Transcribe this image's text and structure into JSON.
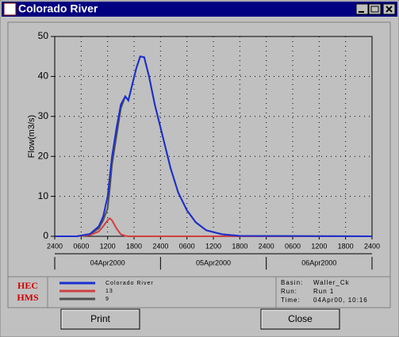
{
  "window": {
    "title": "Colorado River"
  },
  "chart_data": {
    "type": "line",
    "y_label": "Flow(m3/s)",
    "x": [
      0,
      5,
      8,
      10,
      11,
      12,
      12.5,
      13,
      14,
      15,
      16,
      16.7,
      17.6,
      18.5,
      19.4,
      20.3,
      21.4,
      22.7,
      24.5,
      26.3,
      28,
      30,
      32,
      34.4,
      38,
      42,
      72
    ],
    "series": [
      {
        "name": "Colorado River",
        "color": "#1a2fd0",
        "values": [
          0,
          0,
          0.6,
          2.5,
          5,
          10,
          15,
          20,
          27,
          33,
          35,
          34,
          38,
          42,
          45,
          44.8,
          40,
          33,
          25,
          17,
          11,
          6.5,
          3.5,
          1.5,
          0.5,
          0.1,
          0
        ]
      },
      {
        "name": "13",
        "color": "#d04040",
        "values": [
          0,
          0,
          0.3,
          1.2,
          2.5,
          4,
          4.5,
          4,
          2,
          0.5,
          0.1,
          0,
          0,
          0,
          0,
          0,
          0,
          0,
          0,
          0,
          0,
          0,
          0,
          0,
          0,
          0,
          0
        ]
      },
      {
        "name": "9",
        "color": "#505050",
        "values": [
          0,
          0,
          0.5,
          2,
          4,
          7,
          12,
          18,
          25,
          32,
          35,
          34,
          38,
          42,
          45,
          44.8,
          40,
          33,
          25,
          17,
          11,
          6.5,
          3.5,
          1.5,
          0.5,
          0.1,
          0
        ]
      }
    ],
    "xlim": [
      0,
      72
    ],
    "xticks": [
      {
        "value": 0,
        "label": "2400"
      },
      {
        "value": 6,
        "label": "0600"
      },
      {
        "value": 12,
        "label": "1200"
      },
      {
        "value": 18,
        "label": "1800"
      },
      {
        "value": 24,
        "label": "2400"
      },
      {
        "value": 30,
        "label": "0600"
      },
      {
        "value": 36,
        "label": "1200"
      },
      {
        "value": 42,
        "label": "1800"
      },
      {
        "value": 48,
        "label": "2400"
      },
      {
        "value": 54,
        "label": "0600"
      },
      {
        "value": 60,
        "label": "1200"
      },
      {
        "value": 66,
        "label": "1800"
      },
      {
        "value": 72,
        "label": "2400"
      }
    ],
    "date_labels": [
      "04Apr2000",
      "05Apr2000",
      "06Apr2000"
    ],
    "ylim": [
      0,
      50
    ],
    "yticks": [
      0,
      10,
      20,
      30,
      40,
      50
    ],
    "grid": true
  },
  "logo": [
    "HEC",
    "HMS"
  ],
  "info": [
    {
      "label": "Basin:",
      "value": "Waller_Ck"
    },
    {
      "label": "Run:",
      "value": "Run 1"
    },
    {
      "label": "Time:",
      "value": "04Apr00, 10:16"
    }
  ],
  "buttons": [
    "Print",
    "Close"
  ]
}
